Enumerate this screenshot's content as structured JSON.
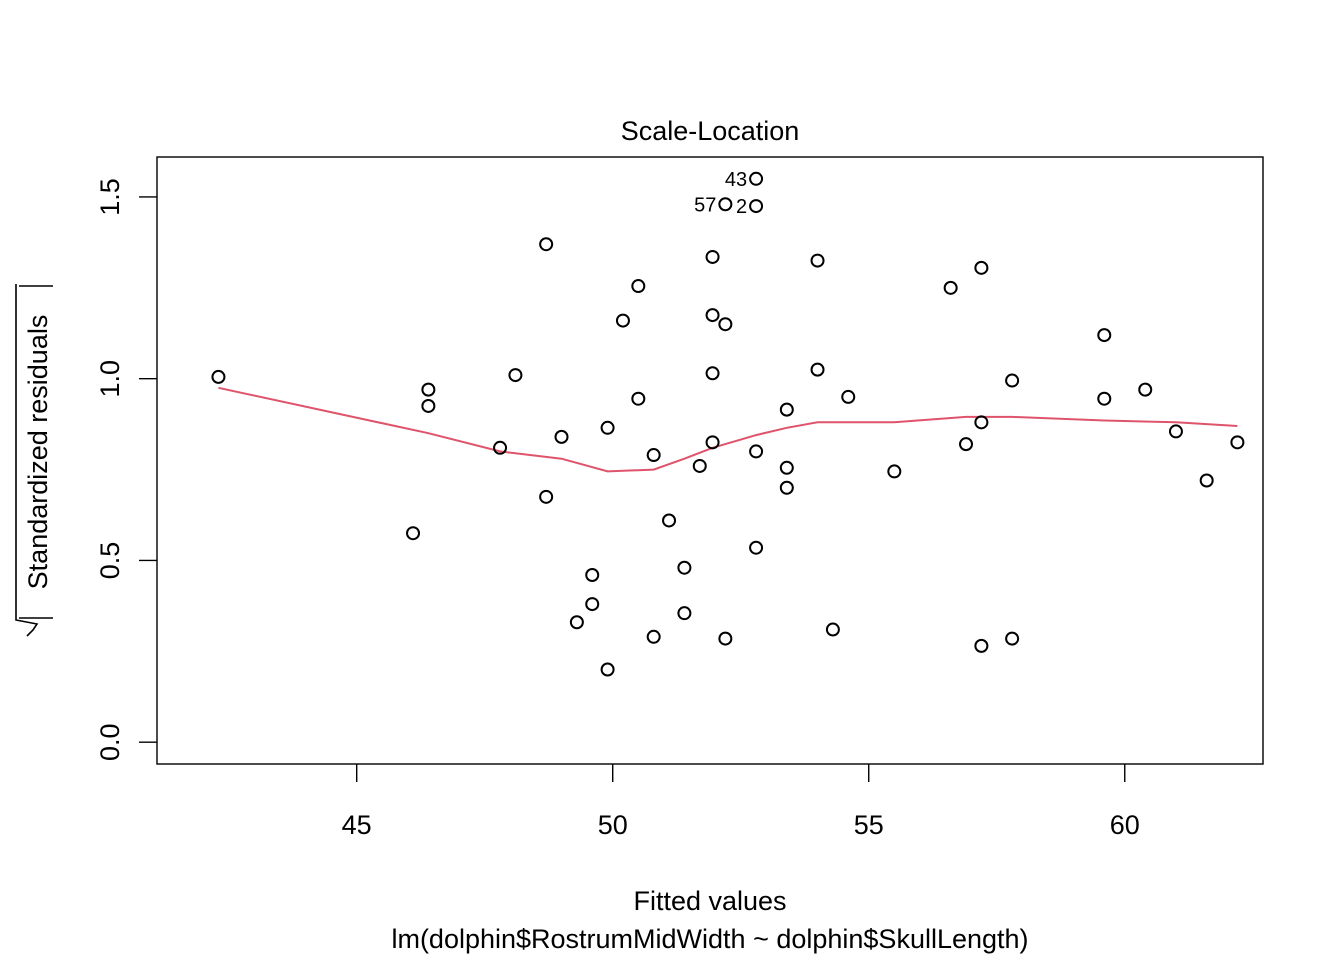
{
  "chart_data": {
    "type": "scatter",
    "title": "Scale-Location",
    "xlabel": "Fitted values",
    "sublabel": "lm(dolphin$RostrumMidWidth ~ dolphin$SkullLength)",
    "ylabel": "Standardized residuals",
    "xlim": [
      41.1,
      62.7
    ],
    "ylim": [
      -0.06,
      1.61
    ],
    "xticks": [
      45,
      50,
      55,
      60
    ],
    "yticks": [
      0.0,
      0.5,
      1.0,
      1.5
    ],
    "xtick_labels": [
      "45",
      "50",
      "55",
      "60"
    ],
    "ytick_labels": [
      "0.0",
      "0.5",
      "1.0",
      "1.5"
    ],
    "smoother_color": "#DF536B",
    "points": [
      {
        "x": 42.3,
        "y": 1.005
      },
      {
        "x": 46.1,
        "y": 0.575
      },
      {
        "x": 46.4,
        "y": 0.97
      },
      {
        "x": 46.4,
        "y": 0.925
      },
      {
        "x": 47.8,
        "y": 0.81
      },
      {
        "x": 48.1,
        "y": 1.01
      },
      {
        "x": 48.7,
        "y": 1.37
      },
      {
        "x": 48.7,
        "y": 0.675
      },
      {
        "x": 49.0,
        "y": 0.84
      },
      {
        "x": 49.3,
        "y": 0.33
      },
      {
        "x": 49.6,
        "y": 0.46
      },
      {
        "x": 49.6,
        "y": 0.38
      },
      {
        "x": 49.9,
        "y": 0.865
      },
      {
        "x": 49.9,
        "y": 0.2
      },
      {
        "x": 50.2,
        "y": 1.16
      },
      {
        "x": 50.5,
        "y": 1.255
      },
      {
        "x": 50.5,
        "y": 0.945
      },
      {
        "x": 50.8,
        "y": 0.79
      },
      {
        "x": 50.8,
        "y": 0.29
      },
      {
        "x": 51.1,
        "y": 0.61
      },
      {
        "x": 51.4,
        "y": 0.48
      },
      {
        "x": 51.4,
        "y": 0.355
      },
      {
        "x": 51.7,
        "y": 0.76
      },
      {
        "x": 51.95,
        "y": 1.335
      },
      {
        "x": 51.95,
        "y": 1.175
      },
      {
        "x": 51.95,
        "y": 1.015
      },
      {
        "x": 51.95,
        "y": 0.825
      },
      {
        "x": 52.2,
        "y": 1.48,
        "label": "57"
      },
      {
        "x": 52.2,
        "y": 1.15
      },
      {
        "x": 52.2,
        "y": 0.285
      },
      {
        "x": 52.8,
        "y": 1.55,
        "label": "43"
      },
      {
        "x": 52.8,
        "y": 1.475,
        "label": "2"
      },
      {
        "x": 52.8,
        "y": 0.8
      },
      {
        "x": 52.8,
        "y": 0.535
      },
      {
        "x": 53.4,
        "y": 0.915
      },
      {
        "x": 53.4,
        "y": 0.755
      },
      {
        "x": 53.4,
        "y": 0.7
      },
      {
        "x": 54.0,
        "y": 1.325
      },
      {
        "x": 54.0,
        "y": 1.025
      },
      {
        "x": 54.3,
        "y": 0.31
      },
      {
        "x": 54.6,
        "y": 0.95
      },
      {
        "x": 55.5,
        "y": 0.745
      },
      {
        "x": 56.6,
        "y": 1.25
      },
      {
        "x": 56.9,
        "y": 0.82
      },
      {
        "x": 57.2,
        "y": 1.305
      },
      {
        "x": 57.2,
        "y": 0.88
      },
      {
        "x": 57.2,
        "y": 0.265
      },
      {
        "x": 57.8,
        "y": 0.995
      },
      {
        "x": 57.8,
        "y": 0.285
      },
      {
        "x": 59.6,
        "y": 1.12
      },
      {
        "x": 59.6,
        "y": 0.945
      },
      {
        "x": 60.4,
        "y": 0.97
      },
      {
        "x": 61.0,
        "y": 0.855
      },
      {
        "x": 61.6,
        "y": 0.72
      },
      {
        "x": 62.2,
        "y": 0.825
      }
    ],
    "smoother": [
      {
        "x": 42.3,
        "y": 0.975
      },
      {
        "x": 46.4,
        "y": 0.85
      },
      {
        "x": 47.8,
        "y": 0.8
      },
      {
        "x": 49.0,
        "y": 0.78
      },
      {
        "x": 49.9,
        "y": 0.745
      },
      {
        "x": 50.8,
        "y": 0.75
      },
      {
        "x": 51.4,
        "y": 0.78
      },
      {
        "x": 51.95,
        "y": 0.81
      },
      {
        "x": 52.8,
        "y": 0.845
      },
      {
        "x": 53.4,
        "y": 0.865
      },
      {
        "x": 54.0,
        "y": 0.88
      },
      {
        "x": 55.5,
        "y": 0.88
      },
      {
        "x": 56.9,
        "y": 0.895
      },
      {
        "x": 57.8,
        "y": 0.895
      },
      {
        "x": 59.6,
        "y": 0.885
      },
      {
        "x": 61.0,
        "y": 0.88
      },
      {
        "x": 62.2,
        "y": 0.87
      }
    ]
  }
}
